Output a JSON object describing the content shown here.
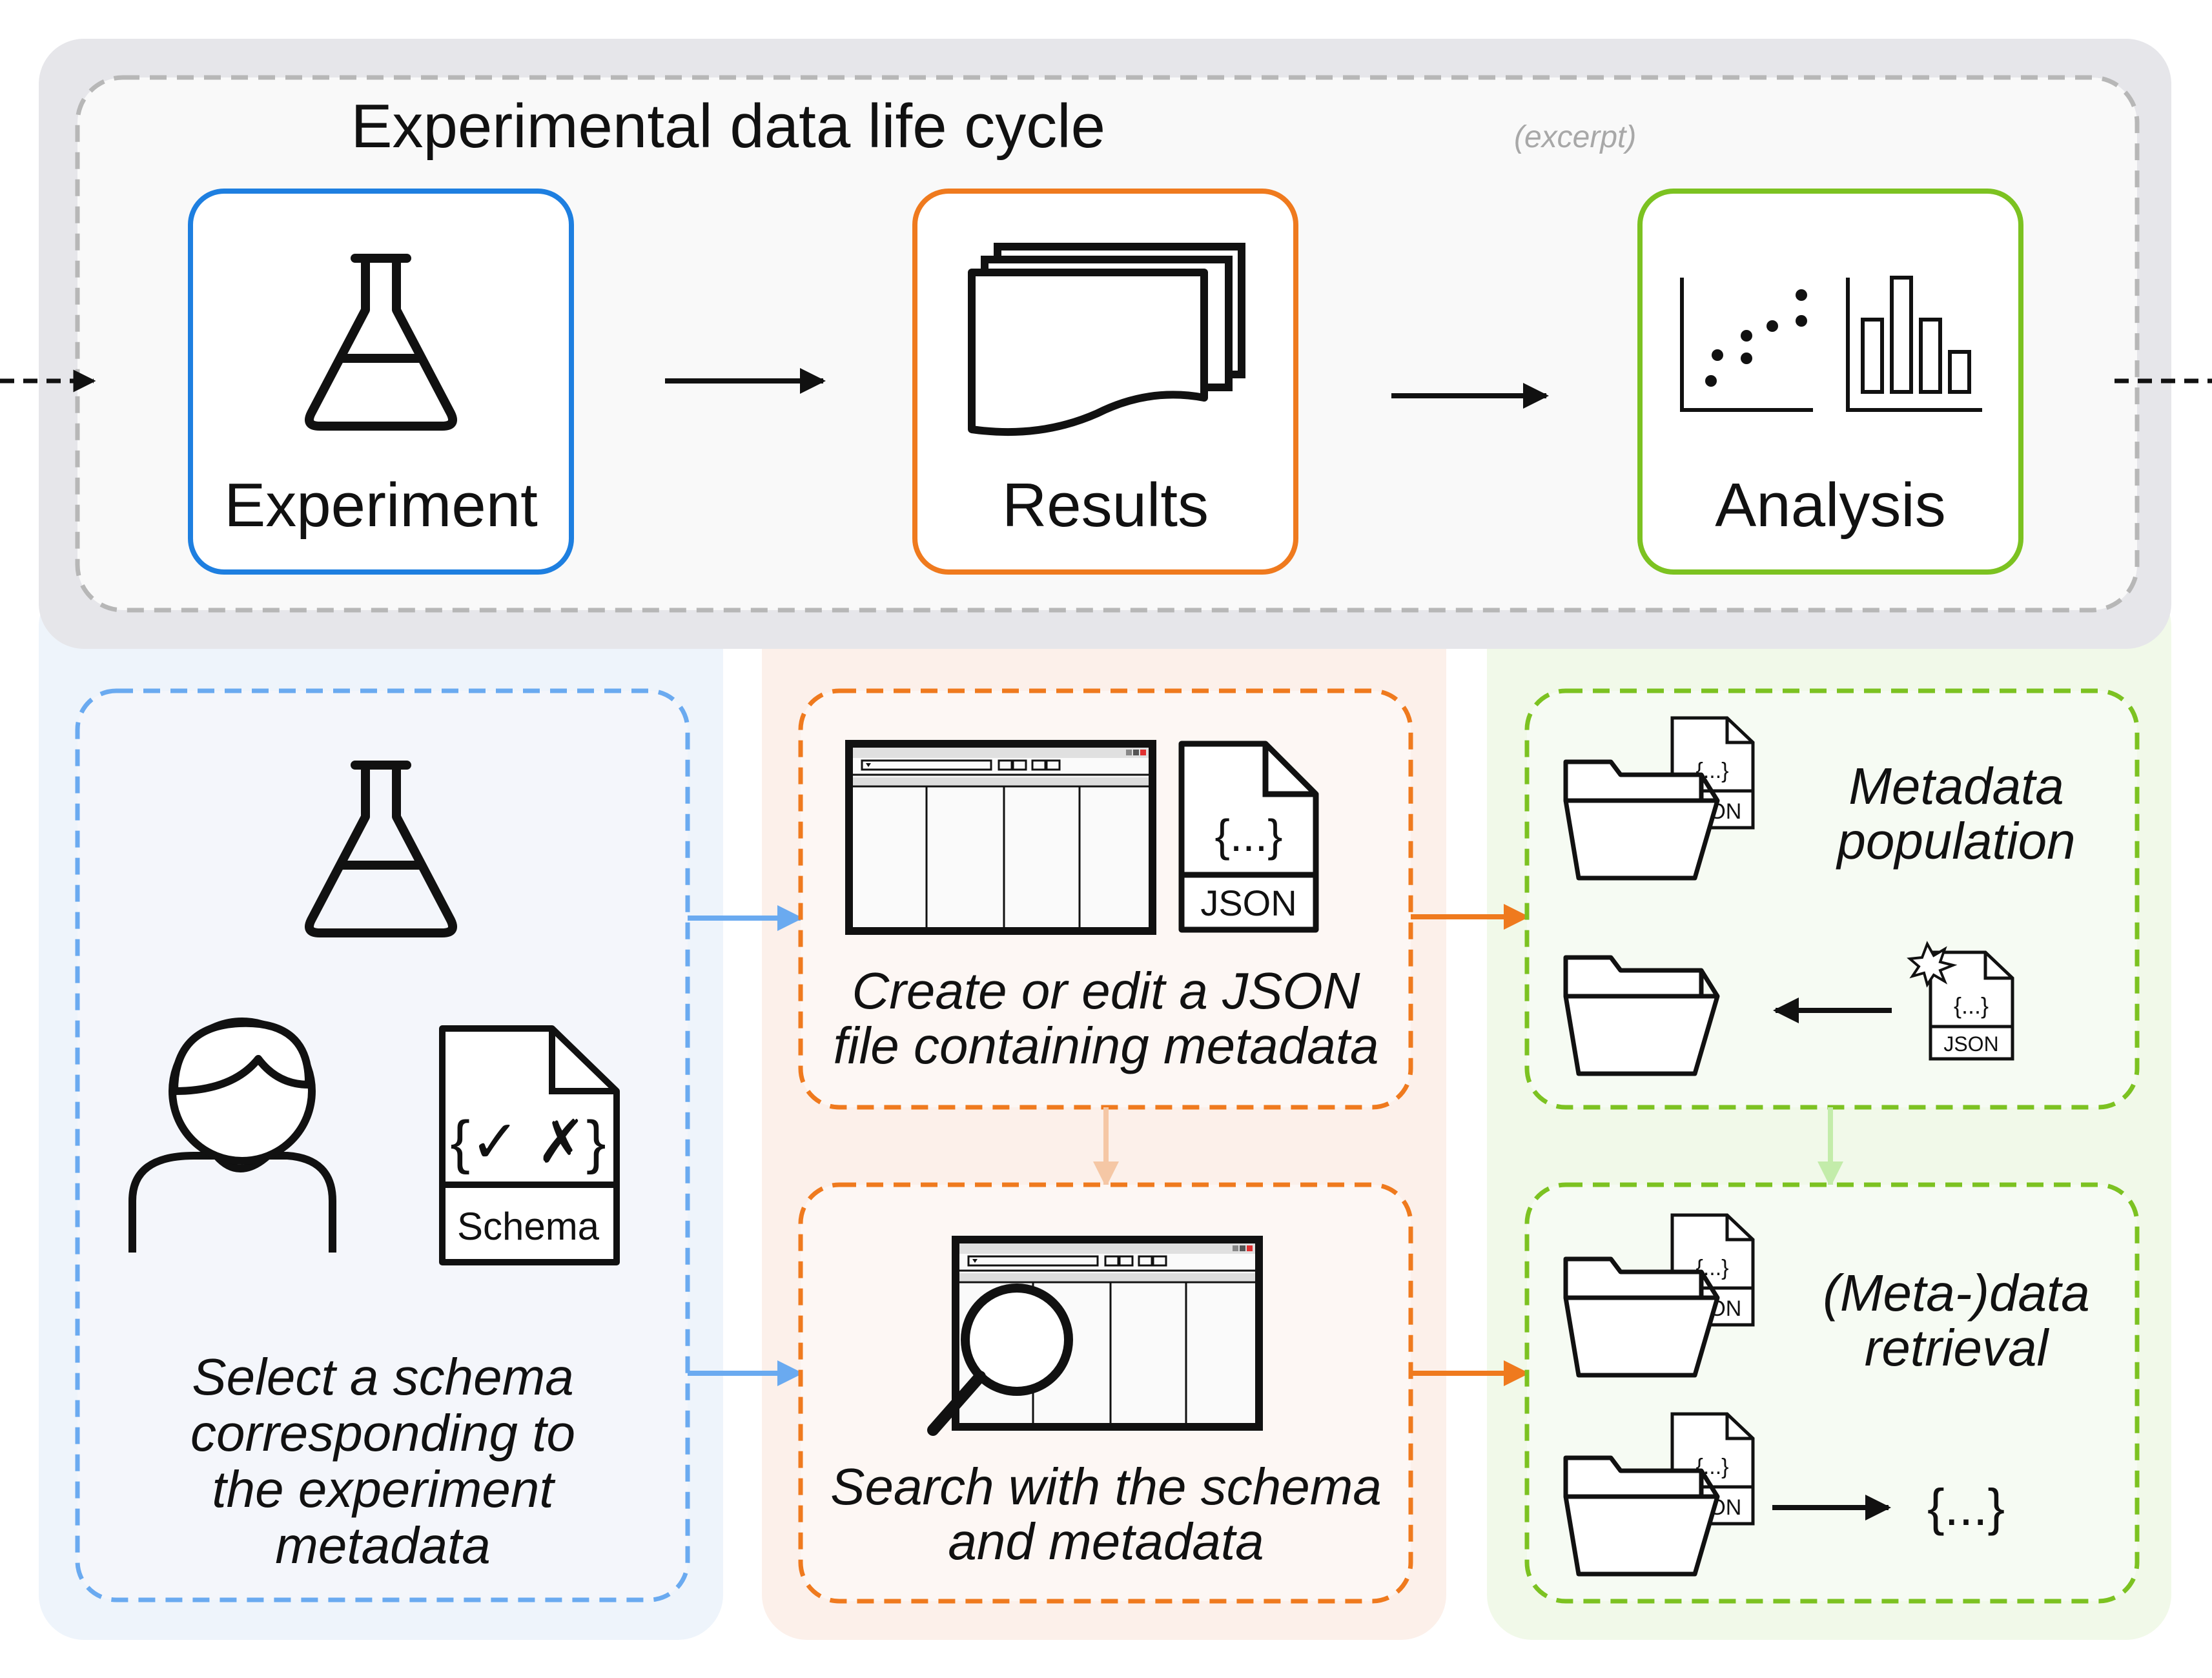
{
  "title": "Experimental data life cycle",
  "title_note": "(excerpt)",
  "stages": [
    {
      "label": "Experiment",
      "color": "#1e7fe0"
    },
    {
      "label": "Results",
      "color": "#ef7a1e"
    },
    {
      "label": "Analysis",
      "color": "#7cc221"
    }
  ],
  "panels": {
    "select": {
      "lines": [
        "Select a schema",
        "corresponding to",
        "the experiment",
        "metadata"
      ],
      "bg": "#eaf2fb",
      "border": "#6aaaf0"
    },
    "schema_icon": {
      "braces": "{✓ ✗}",
      "label": "Schema"
    },
    "create": {
      "lines": [
        "Create or edit a JSON",
        "file containing metadata"
      ],
      "border": "#ef7a1e"
    },
    "json_icon": {
      "braces": "{...}",
      "label": "JSON"
    },
    "search": {
      "lines": [
        "Search with the schema",
        "and metadata"
      ],
      "border": "#ef7a1e"
    },
    "population": {
      "lines": [
        "Metadata",
        "population"
      ],
      "border": "#7cc221"
    },
    "small_json": {
      "braces": "{...}",
      "label": "JSON"
    },
    "retrieval": {
      "lines": [
        "(Meta-)data",
        "retrieval"
      ],
      "border": "#7cc221"
    },
    "result": "{...}"
  },
  "colors": {
    "top_bg": "#e6e6ea",
    "top_inner": "#f9f9f9",
    "blue_bg": "#eef4fb",
    "orange_bg": "#fcf0ea",
    "green_bg": "#f1f9e9",
    "blue_arrow": "#6aaaf0",
    "orange_arrow": "#ef7a1e",
    "faint_orange": "#f5c7a5",
    "faint_green": "#c3ecaa"
  }
}
